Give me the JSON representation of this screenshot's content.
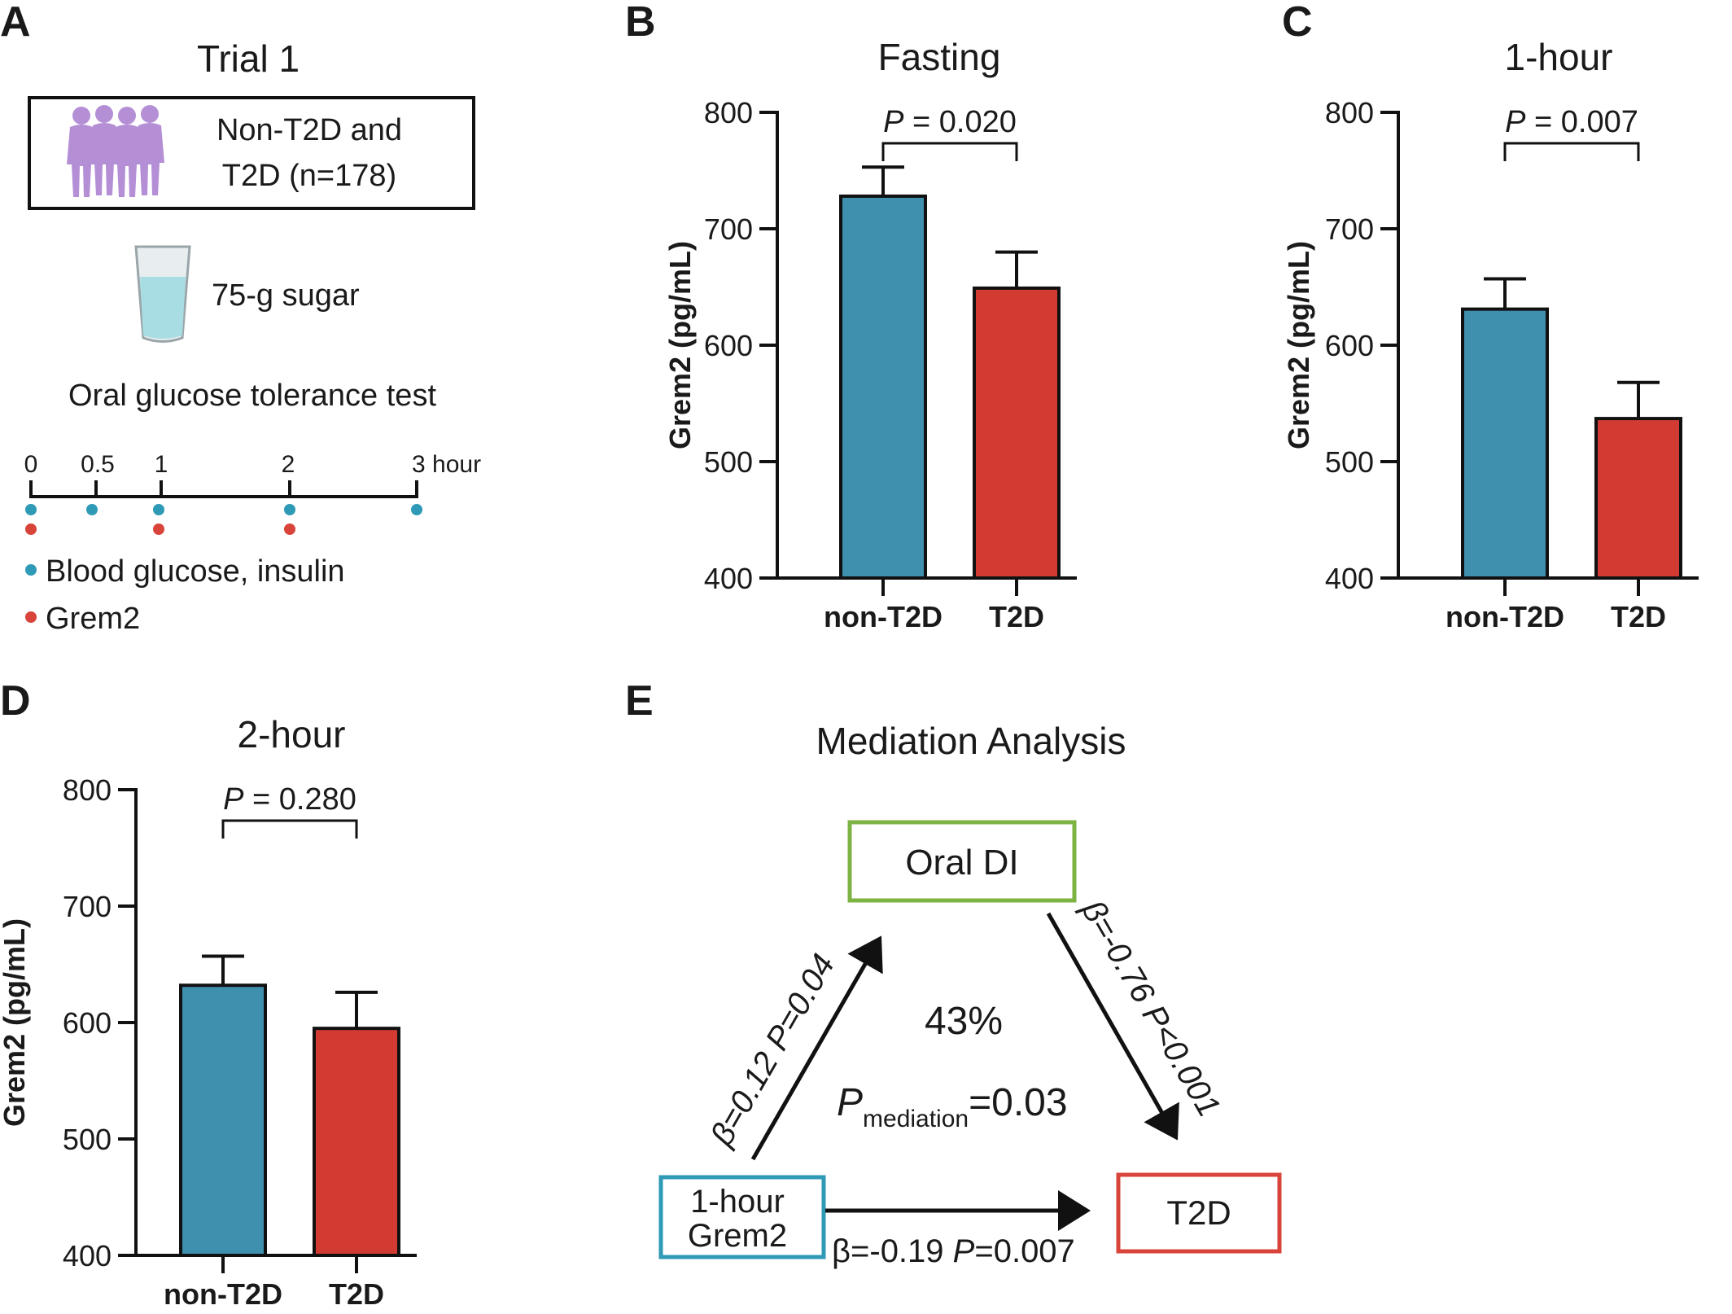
{
  "panels": {
    "A": {
      "letter": "A",
      "title": "Trial 1",
      "cohort_line1": "Non-T2D and",
      "cohort_line2": "T2D (n=178)",
      "sugar_label": "75-g sugar",
      "test_label": "Oral glucose tolerance test",
      "timeline_ticks": [
        "0",
        "0.5",
        "1",
        "2",
        "3 hour"
      ],
      "legend_glucose": "Blood glucose, insulin",
      "legend_grem2": "Grem2",
      "colors": {
        "glucose_dot": "#2e9ab6",
        "grem2_dot": "#d9443a",
        "people": "#b48fd6"
      }
    },
    "B": {
      "letter": "B"
    },
    "C": {
      "letter": "C"
    },
    "D": {
      "letter": "D"
    },
    "E": {
      "letter": "E",
      "title": "Mediation Analysis",
      "node_mediator": "Oral DI",
      "node_exposure_line1": "1-hour",
      "node_exposure_line2": "Grem2",
      "node_outcome": "T2D",
      "path_a": "β=0.12 P=0.04",
      "path_b": "β=-0.76 P<0.001",
      "path_c_beta": "β=-0.19 ",
      "path_c_p": "P",
      "path_c_val": "=0.007",
      "percent": "43%",
      "pmed_p": "P",
      "pmed_sub": "mediation",
      "pmed_val": "=0.03",
      "colors": {
        "mediator": "#7cb342",
        "exposure": "#2e9ab6",
        "outcome": "#d9443a"
      }
    }
  },
  "chart_data": [
    {
      "type": "bar",
      "panel": "B",
      "title": "Fasting",
      "ylabel": "Grem2 (pg/mL)",
      "categories": [
        "non-T2D",
        "T2D"
      ],
      "values": [
        728,
        649
      ],
      "errors": [
        25,
        31
      ],
      "ylim": [
        400,
        800
      ],
      "yticks": [
        400,
        500,
        600,
        700,
        800
      ],
      "colors": [
        "#3f8faf",
        "#d13b32"
      ],
      "annotation": {
        "p_label": "P",
        "p_value": " = 0.020"
      }
    },
    {
      "type": "bar",
      "panel": "C",
      "title": "1-hour",
      "ylabel": "Grem2 (pg/mL)",
      "categories": [
        "non-T2D",
        "T2D"
      ],
      "values": [
        631,
        537
      ],
      "errors": [
        26,
        31
      ],
      "ylim": [
        400,
        800
      ],
      "yticks": [
        400,
        500,
        600,
        700,
        800
      ],
      "colors": [
        "#3f8faf",
        "#d13b32"
      ],
      "annotation": {
        "p_label": "P",
        "p_value": " = 0.007"
      }
    },
    {
      "type": "bar",
      "panel": "D",
      "title": "2-hour",
      "ylabel": "Grem2 (pg/mL)",
      "categories": [
        "non-T2D",
        "T2D"
      ],
      "values": [
        632,
        595
      ],
      "errors": [
        25,
        31
      ],
      "ylim": [
        400,
        800
      ],
      "yticks": [
        400,
        500,
        600,
        700,
        800
      ],
      "colors": [
        "#3f8faf",
        "#d13b32"
      ],
      "annotation": {
        "p_label": "P",
        "p_value": " = 0.280"
      }
    }
  ]
}
